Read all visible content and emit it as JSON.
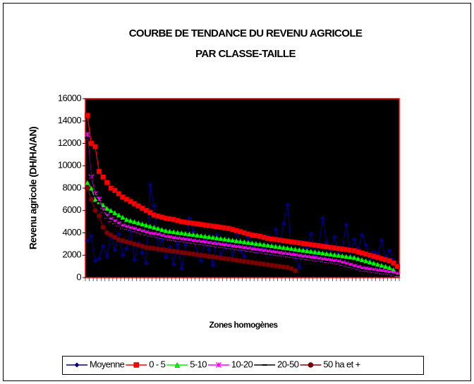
{
  "chart_data": {
    "type": "line",
    "title": [
      "COURBE DE TENDANCE DU REVENU AGRICOLE",
      "PAR CLASSE-TAILLE"
    ],
    "x_label": "Zones homogènes",
    "y_label": "Revenu agricole (DH/HA/AN)",
    "ylim": [
      0,
      16000
    ],
    "yticks": [
      0,
      2000,
      4000,
      6000,
      8000,
      10000,
      12000,
      14000,
      16000
    ],
    "grid": false,
    "legend": "bottom",
    "background": "#000000",
    "frame_color": "#ff0000",
    "categories": [
      null,
      null,
      null,
      null,
      null,
      null,
      null,
      null,
      null,
      null,
      null,
      null,
      null,
      null,
      null,
      null,
      null,
      null,
      null,
      null,
      null,
      null,
      null,
      null,
      null,
      null,
      null,
      null,
      null,
      null,
      null,
      null,
      null,
      null,
      null,
      null,
      null,
      null,
      null,
      null,
      null,
      null,
      null,
      null,
      null,
      null,
      null,
      null,
      null,
      null,
      null,
      null,
      null,
      null,
      null,
      null,
      null,
      null,
      null,
      null,
      null,
      null,
      null,
      null,
      null,
      null,
      null,
      null,
      null,
      null,
      null,
      null,
      null,
      null,
      null,
      null,
      null,
      null,
      null,
      null
    ],
    "series": [
      {
        "name": "Moyenne",
        "color": "#000080",
        "marker": "diamond",
        "values": [
          3300,
          3700,
          1500,
          1700,
          2800,
          1900,
          3800,
          2500,
          3900,
          2000,
          2600,
          4200,
          1600,
          3100,
          2200,
          1300,
          8300,
          6400,
          2400,
          3600,
          1800,
          2700,
          1200,
          3000,
          800,
          2900,
          5300,
          4100,
          2200,
          1500,
          3400,
          2500,
          1100,
          3800,
          2000,
          2700,
          3300,
          1700,
          4300,
          2400,
          1900,
          3600,
          2900,
          2300,
          3000,
          2600,
          3700,
          2100,
          4300,
          2800,
          4800,
          6500,
          2500,
          1800,
          900,
          3200,
          2600,
          3900,
          2000,
          2800,
          5300,
          3100,
          2400,
          3600,
          2200,
          2700,
          4700,
          1900,
          3400,
          2500,
          3800,
          2900,
          1600,
          2300,
          2100,
          3300,
          1800,
          2400,
          1500,
          1100
        ]
      },
      {
        "name": "0 - 5",
        "color": "#ff0000",
        "marker": "square",
        "values": [
          14500,
          12000,
          11700,
          9500,
          9000,
          8500,
          8000,
          7800,
          7500,
          7200,
          7000,
          6800,
          6600,
          6400,
          6200,
          6000,
          5800,
          5600,
          5500,
          5400,
          5300,
          5250,
          5200,
          5100,
          5000,
          4950,
          4900,
          4850,
          4800,
          4750,
          4700,
          4650,
          4600,
          4550,
          4500,
          4450,
          4400,
          4300,
          4200,
          4100,
          4000,
          3900,
          3800,
          3750,
          3700,
          3600,
          3500,
          3450,
          3400,
          3350,
          3300,
          3250,
          3200,
          3150,
          3100,
          3050,
          3000,
          2950,
          2900,
          2850,
          2800,
          2750,
          2700,
          2650,
          2600,
          2550,
          2500,
          2450,
          2400,
          2300,
          2200,
          2100,
          2000,
          1900,
          1800,
          1700,
          1600,
          1500,
          1300,
          1000
        ]
      },
      {
        "name": "5-10",
        "color": "#00ff00",
        "marker": "triangle",
        "values": [
          8500,
          8000,
          7000,
          6800,
          6500,
          6200,
          6000,
          5800,
          5600,
          5400,
          5200,
          5100,
          5000,
          4900,
          4800,
          4700,
          4600,
          4500,
          4400,
          4300,
          4200,
          4150,
          4100,
          4050,
          4000,
          3950,
          3900,
          3850,
          3800,
          3750,
          3700,
          3650,
          3600,
          3550,
          3500,
          3450,
          3400,
          3350,
          3300,
          3250,
          3200,
          3150,
          3100,
          3050,
          3000,
          2950,
          2900,
          2850,
          2800,
          2750,
          2700,
          2650,
          2600,
          2550,
          2500,
          2450,
          2400,
          2350,
          2300,
          2250,
          2200,
          2150,
          2100,
          2050,
          2000,
          1950,
          1900,
          1850,
          1800,
          1700,
          1600,
          1500,
          1400,
          1300,
          1200,
          1100,
          1000,
          900,
          700,
          300
        ]
      },
      {
        "name": "10-20",
        "color": "#ff00ff",
        "marker": "asterisk",
        "values": [
          12800,
          9000,
          7500,
          7000,
          6000,
          5500,
          5200,
          5000,
          4800,
          4600,
          4500,
          4400,
          4300,
          4200,
          4100,
          4000,
          3900,
          3850,
          3800,
          3700,
          3600,
          3550,
          3500,
          3450,
          3400,
          3350,
          3300,
          3250,
          3200,
          3150,
          3100,
          3050,
          3000,
          2950,
          2900,
          2850,
          2800,
          2750,
          2700,
          2650,
          2600,
          2550,
          2500,
          2450,
          2400,
          2350,
          2300,
          2250,
          2200,
          2150,
          2100,
          2050,
          2000,
          1950,
          1900,
          1850,
          1800,
          1750,
          1700,
          1650,
          1600,
          1550,
          1500,
          1450,
          1400,
          1300,
          1200,
          1100,
          1000,
          900,
          800,
          750,
          700,
          650,
          600,
          550,
          500,
          450,
          400,
          300
        ]
      },
      {
        "name": "20-50",
        "color": "#000000",
        "marker": "dash",
        "values": [
          12500,
          8800,
          7300,
          6800,
          5900,
          5400,
          5100,
          4900,
          4700,
          4500,
          4400,
          4300,
          4200,
          4100,
          4000,
          3900,
          3800,
          3750,
          3700,
          3600,
          3500,
          3450,
          3400,
          3350,
          3300,
          3250,
          3200,
          3150,
          3100,
          3050,
          3000,
          2950,
          2900,
          2850,
          2800,
          2750,
          2700,
          2650,
          2600,
          2550,
          2500,
          2450,
          2400,
          2350,
          2300,
          2250,
          2200,
          2150,
          2100,
          2050,
          2000,
          1950,
          1900,
          1850,
          1800,
          1750,
          1700,
          1650,
          1600,
          1550,
          1500,
          1450,
          1400,
          1350,
          1300,
          1200,
          1100,
          1000,
          900,
          800,
          700,
          650,
          600,
          550,
          500,
          450,
          400,
          350,
          300,
          200
        ]
      },
      {
        "name": "50 ha et +",
        "color": "#800000",
        "marker": "circle",
        "values": [
          8000,
          7000,
          6000,
          5500,
          4500,
          4000,
          3800,
          3600,
          3400,
          3300,
          3200,
          3100,
          3000,
          2900,
          2800,
          2700,
          2650,
          2600,
          2550,
          2500,
          2450,
          2400,
          2350,
          2300,
          2250,
          2200,
          2150,
          2100,
          2050,
          2000,
          1950,
          1900,
          1850,
          1800,
          1750,
          1700,
          1650,
          1600,
          1550,
          1500,
          1450,
          1400,
          1350,
          1300,
          1250,
          1200,
          1150,
          1100,
          1050,
          1000,
          950,
          900,
          800,
          600,
          null,
          null,
          null,
          null,
          null,
          null,
          null,
          null,
          null,
          null,
          null,
          null,
          null,
          null,
          null,
          null,
          null,
          null,
          null,
          null,
          null,
          null,
          null,
          null,
          null,
          null
        ]
      }
    ]
  }
}
